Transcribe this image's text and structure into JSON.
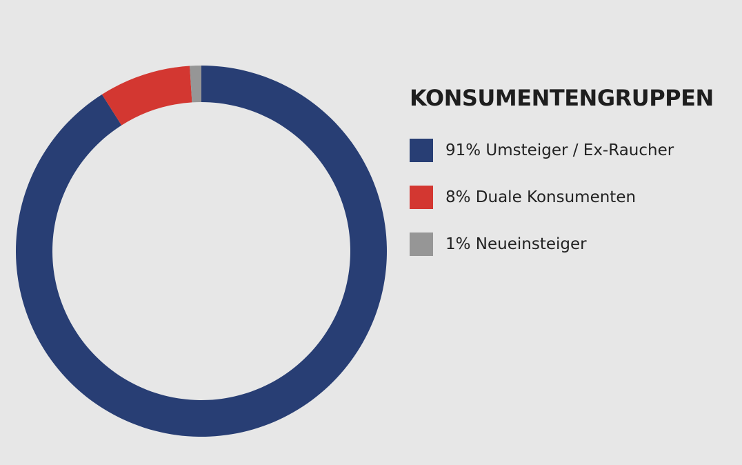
{
  "chart_data": {
    "type": "pie",
    "title": "KONSUMENTENGRUPPEN",
    "donut": true,
    "legend_position": "right",
    "series": [
      {
        "name": "Umsteiger / Ex-Raucher",
        "value": 91,
        "label": "91% Umsteiger / Ex-Raucher",
        "color": "#283e74"
      },
      {
        "name": "Duale Konsumenten",
        "value": 8,
        "label": "8% Duale Konsumenten",
        "color": "#d33731"
      },
      {
        "name": "Neueinsteiger",
        "value": 1,
        "label": "1% Neueinsteiger",
        "color": "#969696"
      }
    ]
  }
}
